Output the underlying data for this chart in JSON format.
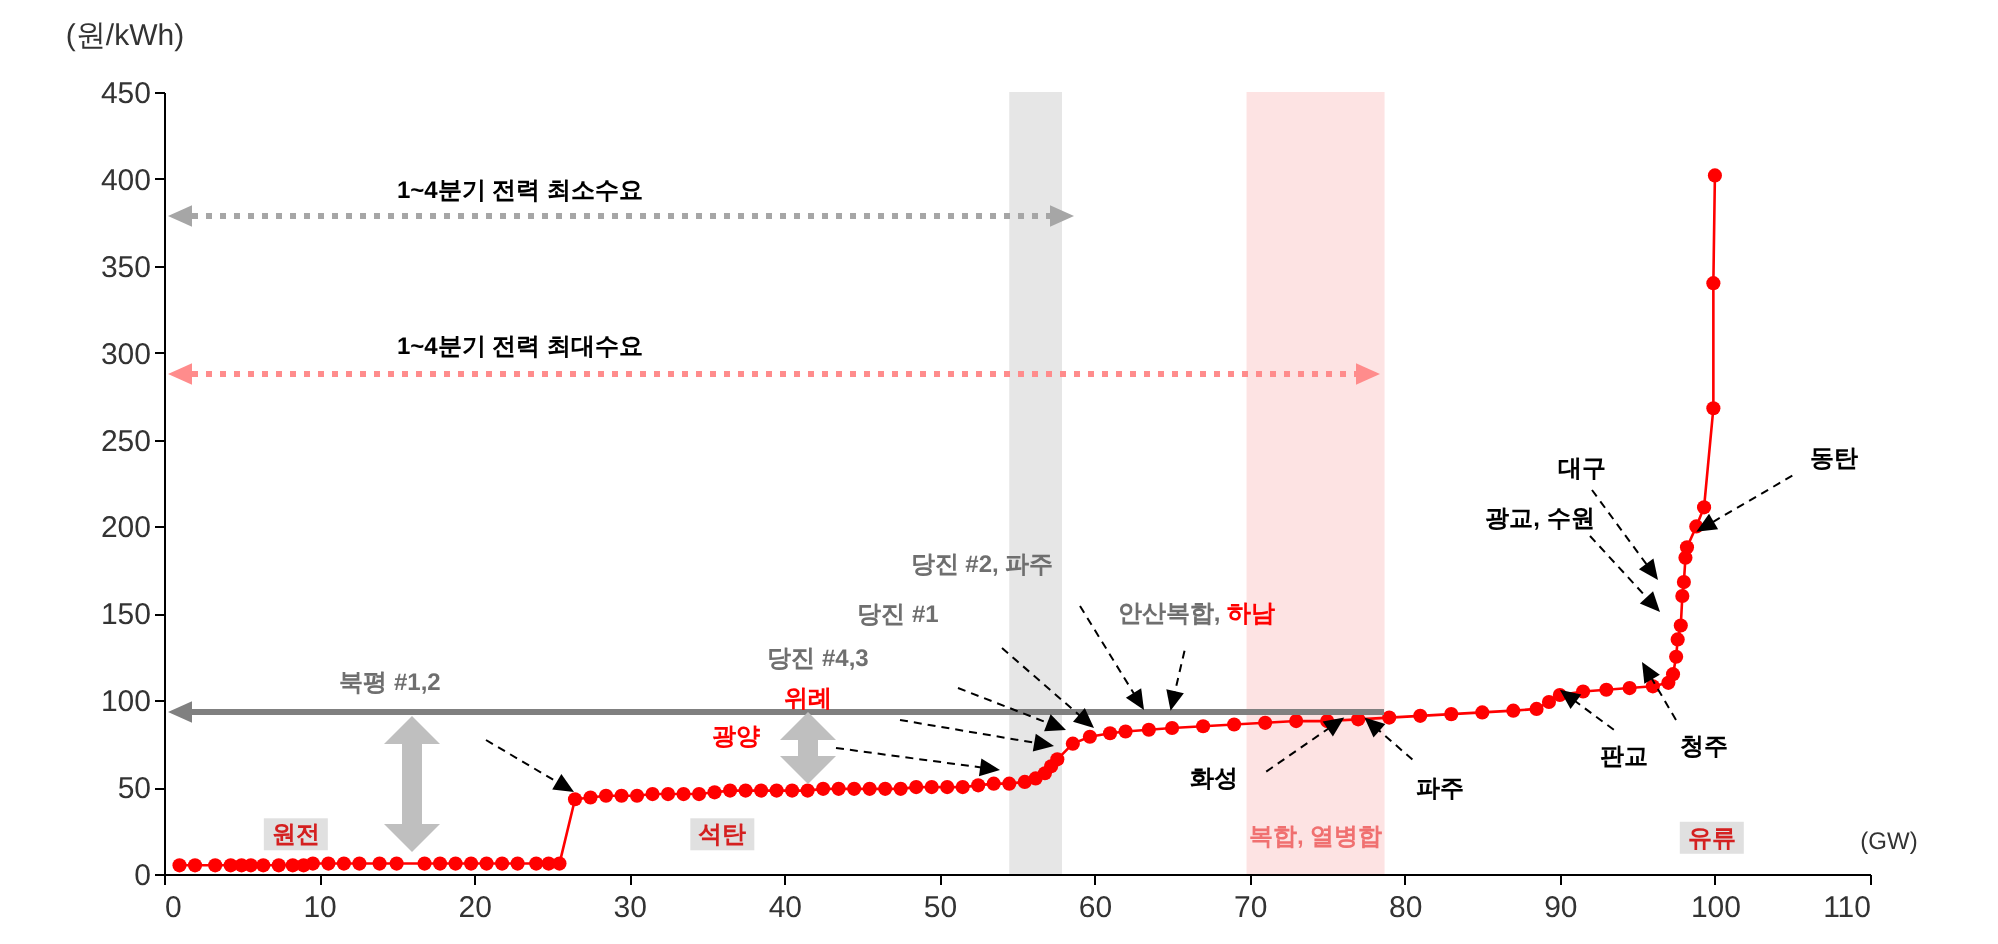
{
  "chart_data": {
    "type": "line",
    "xlabel": "(GW)",
    "ylabel": "(원/kWh)",
    "xlim": [
      0,
      110
    ],
    "ylim": [
      0,
      450
    ],
    "xticks": [
      0,
      10,
      20,
      30,
      40,
      50,
      60,
      70,
      80,
      90,
      100,
      110
    ],
    "yticks": [
      0,
      50,
      100,
      150,
      200,
      250,
      300,
      350,
      400,
      450
    ],
    "bands": [
      {
        "axis": "x",
        "from": 54.5,
        "to": 57.9,
        "color": "#e6e6e6"
      },
      {
        "axis": "x",
        "from": 69.8,
        "to": 78.7,
        "color": "#fde3e3",
        "label": "복합, 열병합"
      }
    ],
    "series": [
      {
        "color": "#ff0000",
        "marker": "circle",
        "line_style": "solid",
        "x": [
          1,
          2,
          3.3,
          4.3,
          5,
          5.6,
          6.4,
          7.4,
          8.3,
          9,
          9.6,
          10.6,
          11.6,
          12.6,
          13.9,
          15,
          16.8,
          17.8,
          18.8,
          19.8,
          20.8,
          21.8,
          22.8,
          24,
          24.8,
          25.5,
          26.5,
          27.5,
          28.5,
          29.5,
          30.5,
          31.5,
          32.5,
          33.5,
          34.5,
          35.5,
          36.5,
          37.5,
          38.5,
          39.5,
          40.5,
          41.5,
          42.5,
          43.5,
          44.5,
          45.5,
          46.5,
          47.5,
          48.5,
          49.5,
          50.5,
          51.5,
          52.5,
          53.5,
          54.5,
          55.5,
          56.2,
          56.8,
          57.2,
          57.6,
          58.6,
          59.7,
          61,
          62,
          63.5,
          65,
          67,
          69,
          71,
          73,
          75,
          77,
          79,
          81,
          83,
          85,
          87,
          88.5,
          89.3,
          90,
          91.5,
          93,
          94.5,
          96,
          97,
          97.3,
          97.5,
          97.6,
          97.8,
          97.9,
          98,
          98.1,
          98.2,
          98.8,
          99.3,
          99.9,
          99.9,
          100
        ],
        "values": [
          5,
          5,
          5,
          5,
          5,
          5,
          5,
          5,
          5,
          5,
          6,
          6,
          6,
          6,
          6,
          6,
          6,
          6,
          6,
          6,
          6,
          6,
          6,
          6,
          6,
          6,
          43,
          44,
          45,
          45,
          45,
          46,
          46,
          46,
          46,
          47,
          48,
          48,
          48,
          48,
          48,
          48,
          49,
          49,
          49,
          49,
          49,
          49,
          50,
          50,
          50,
          50,
          51,
          52,
          52,
          53,
          55,
          58,
          62,
          66,
          75,
          79,
          81,
          82,
          83,
          84,
          85,
          86,
          87,
          88,
          88,
          89,
          90,
          91,
          92,
          93,
          94,
          95,
          99,
          103,
          105,
          106,
          107,
          108,
          110,
          115,
          125,
          135,
          143,
          160,
          168,
          182,
          188,
          200,
          211,
          268,
          340,
          402
        ]
      }
    ],
    "annotations": [
      "1~4분기 전력 최소수요",
      "1~4분기 전력 최대수요",
      "북평 #1,2",
      "광양",
      "위례",
      "당진 #4,3",
      "당진 #1",
      "당진 #2, 파주",
      {
        "text": "안산복합, 하남",
        "x": 64.9,
        "y": 94
      },
      {
        "text": "화성",
        "x": 76.1,
        "y": 90
      },
      {
        "text": "파주",
        "x": 77.4,
        "y": 90
      },
      {
        "text": "판교",
        "x": 90,
        "y": 106
      },
      "청주",
      "광교, 수원",
      "대구",
      {
        "text": "동탄",
        "x": 98.8,
        "y": 197
      },
      {
        "text": "원전",
        "x": 8.5,
        "y": 24
      },
      {
        "text": "석탄",
        "x": 36,
        "y": 24
      },
      {
        "text": "유류",
        "x": 99.8,
        "y": 22
      }
    ]
  }
}
